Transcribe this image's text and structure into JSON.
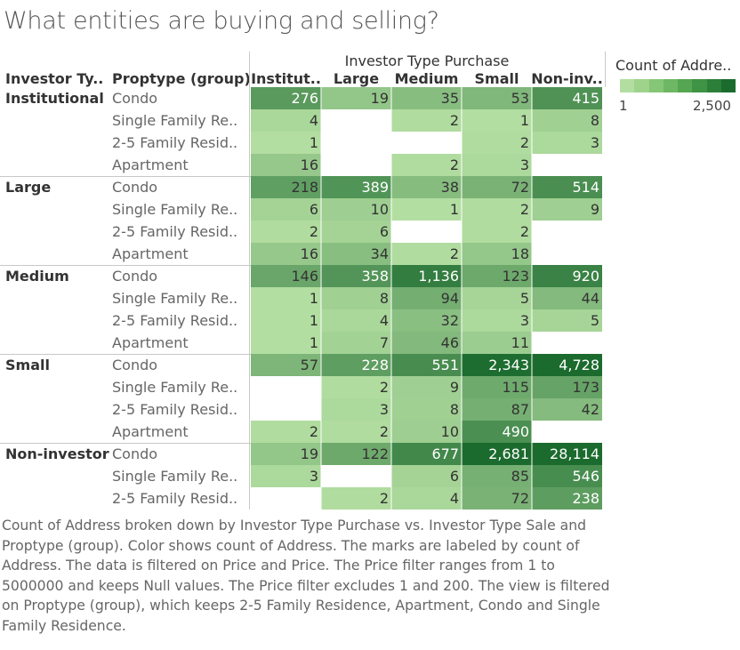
{
  "title": "What entities are buying and selling?",
  "caption": "Count of Address broken down by Investor Type Purchase vs. Investor Type Sale and Proptype (group).  Color shows count of Address. The marks are labeled by count of Address. The data is filtered on Price and Price. The Price filter ranges from 1 to 5000000 and keeps Null values. The Price filter excludes 1 and 200. The view is filtered on Proptype (group), which keeps 2-5 Family Residence, Apartment, Condo and Single Family Residence.",
  "legend": {
    "title": "Count of Addre..",
    "min_label": "1",
    "max_label": "2,500",
    "colors": [
      "#b3dea1",
      "#9fd38c",
      "#86c677",
      "#6eb764",
      "#55a552",
      "#3f9344",
      "#2b7f38",
      "#1c6b2e"
    ]
  },
  "colors": {
    "empty": "#ffffff",
    "low": "#b3dea1",
    "high": "#1c6b2e",
    "separator": "#c8c8c8"
  },
  "chart_data": {
    "type": "heatmap",
    "column_header_title": "Investor Type Purchase",
    "row_header_1": "Investor Ty..",
    "row_header_2": "Proptype (group)",
    "columns": [
      "Institut..",
      "Large",
      "Medium",
      "Small",
      "Non-inv.."
    ],
    "color_range": [
      1,
      2500
    ],
    "groups": [
      {
        "name": "Institutional",
        "rows": [
          {
            "proptype": "Condo",
            "labels": [
              "276",
              "19",
              "35",
              "53",
              "415"
            ],
            "values": [
              276,
              19,
              35,
              53,
              415
            ]
          },
          {
            "proptype": "Single Family Re..",
            "labels": [
              "4",
              "",
              "2",
              "1",
              "8"
            ],
            "values": [
              4,
              null,
              2,
              1,
              8
            ]
          },
          {
            "proptype": "2-5 Family Resid..",
            "labels": [
              "1",
              "",
              "",
              "2",
              "3"
            ],
            "values": [
              1,
              null,
              null,
              2,
              3
            ]
          },
          {
            "proptype": "Apartment",
            "labels": [
              "16",
              "",
              "2",
              "3",
              ""
            ],
            "values": [
              16,
              null,
              2,
              3,
              null
            ]
          }
        ]
      },
      {
        "name": "Large",
        "rows": [
          {
            "proptype": "Condo",
            "labels": [
              "218",
              "389",
              "38",
              "72",
              "514"
            ],
            "values": [
              218,
              389,
              38,
              72,
              514
            ]
          },
          {
            "proptype": "Single Family Re..",
            "labels": [
              "6",
              "10",
              "1",
              "2",
              "9"
            ],
            "values": [
              6,
              10,
              1,
              2,
              9
            ]
          },
          {
            "proptype": "2-5 Family Resid..",
            "labels": [
              "2",
              "6",
              "",
              "2",
              ""
            ],
            "values": [
              2,
              6,
              null,
              2,
              null
            ]
          },
          {
            "proptype": "Apartment",
            "labels": [
              "16",
              "34",
              "2",
              "18",
              ""
            ],
            "values": [
              16,
              34,
              2,
              18,
              null
            ]
          }
        ]
      },
      {
        "name": "Medium",
        "rows": [
          {
            "proptype": "Condo",
            "labels": [
              "146",
              "358",
              "1,136",
              "123",
              "920"
            ],
            "values": [
              146,
              358,
              1136,
              123,
              920
            ]
          },
          {
            "proptype": "Single Family Re..",
            "labels": [
              "1",
              "8",
              "94",
              "5",
              "44"
            ],
            "values": [
              1,
              8,
              94,
              5,
              44
            ]
          },
          {
            "proptype": "2-5 Family Resid..",
            "labels": [
              "1",
              "4",
              "32",
              "3",
              "5"
            ],
            "values": [
              1,
              4,
              32,
              3,
              5
            ]
          },
          {
            "proptype": "Apartment",
            "labels": [
              "1",
              "7",
              "46",
              "11",
              ""
            ],
            "values": [
              1,
              7,
              46,
              11,
              null
            ]
          }
        ]
      },
      {
        "name": "Small",
        "rows": [
          {
            "proptype": "Condo",
            "labels": [
              "57",
              "228",
              "551",
              "2,343",
              "4,728"
            ],
            "values": [
              57,
              228,
              551,
              2343,
              4728
            ]
          },
          {
            "proptype": "Single Family Re..",
            "labels": [
              "",
              "2",
              "9",
              "115",
              "173"
            ],
            "values": [
              null,
              2,
              9,
              115,
              173
            ]
          },
          {
            "proptype": "2-5 Family Resid..",
            "labels": [
              "",
              "3",
              "8",
              "87",
              "42"
            ],
            "values": [
              null,
              3,
              8,
              87,
              42
            ]
          },
          {
            "proptype": "Apartment",
            "labels": [
              "2",
              "2",
              "10",
              "490",
              ""
            ],
            "values": [
              2,
              2,
              10,
              490,
              null
            ]
          }
        ]
      },
      {
        "name": "Non-investor",
        "rows": [
          {
            "proptype": "Condo",
            "labels": [
              "19",
              "122",
              "677",
              "2,681",
              "28,114"
            ],
            "values": [
              19,
              122,
              677,
              2681,
              28114
            ]
          },
          {
            "proptype": "Single Family Re..",
            "labels": [
              "3",
              "",
              "6",
              "85",
              "546"
            ],
            "values": [
              3,
              null,
              6,
              85,
              546
            ]
          },
          {
            "proptype": "2-5 Family Resid..",
            "labels": [
              "",
              "2",
              "4",
              "72",
              "238"
            ],
            "values": [
              null,
              2,
              4,
              72,
              238
            ]
          }
        ]
      }
    ]
  }
}
